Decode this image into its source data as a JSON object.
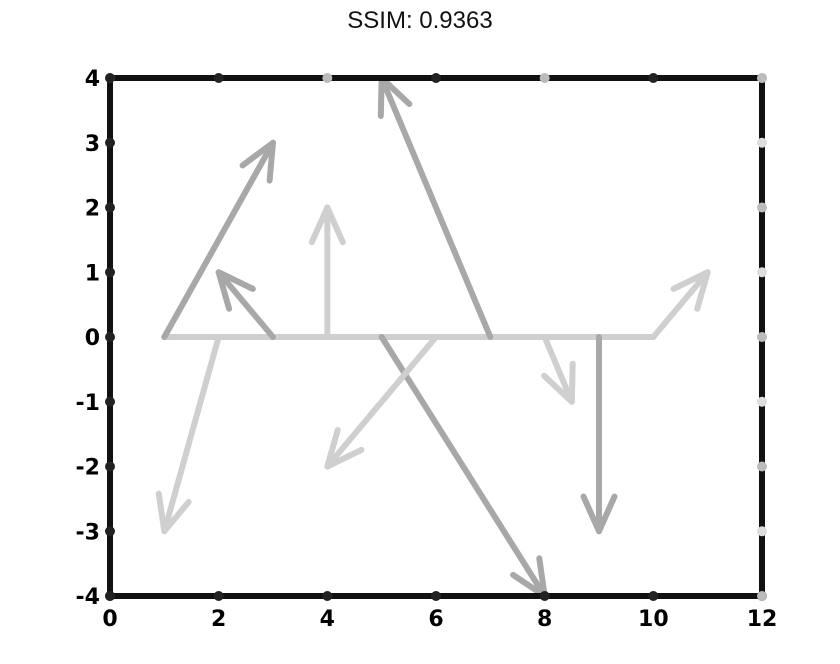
{
  "chart_data": {
    "type": "quiver",
    "title": "SSIM: 0.9363",
    "xlim": [
      0,
      12
    ],
    "ylim": [
      -4,
      4
    ],
    "x_tick_labels": [
      "0",
      "2",
      "4",
      "6",
      "8",
      "10",
      "12"
    ],
    "y_tick_labels": [
      "-4",
      "-3",
      "-2",
      "-1",
      "0",
      "1",
      "2",
      "3",
      "4"
    ],
    "colors": {
      "frame": "#111111",
      "arrow_dark": "#a8a8a8",
      "arrow_light": "#cfcfcf"
    },
    "arrows": [
      {
        "x": 1,
        "y": 0,
        "u": 2,
        "v": 3
      },
      {
        "x": 2,
        "y": 0,
        "u": -1,
        "v": -3
      },
      {
        "x": 3,
        "y": 0,
        "u": -1,
        "v": 1
      },
      {
        "x": 4,
        "y": 0,
        "u": 0,
        "v": 2
      },
      {
        "x": 5,
        "y": 0,
        "u": 3,
        "v": -4
      },
      {
        "x": 6,
        "y": 0,
        "u": -2,
        "v": -2
      },
      {
        "x": 7,
        "y": 0,
        "u": -2,
        "v": 4
      },
      {
        "x": 8,
        "y": 0,
        "u": 0.5,
        "v": -1
      },
      {
        "x": 9,
        "y": 0,
        "u": 0,
        "v": -3
      },
      {
        "x": 10,
        "y": 0,
        "u": 1,
        "v": 1
      }
    ],
    "baseline": {
      "y": 0,
      "x_from": 1,
      "x_to": 10
    }
  }
}
